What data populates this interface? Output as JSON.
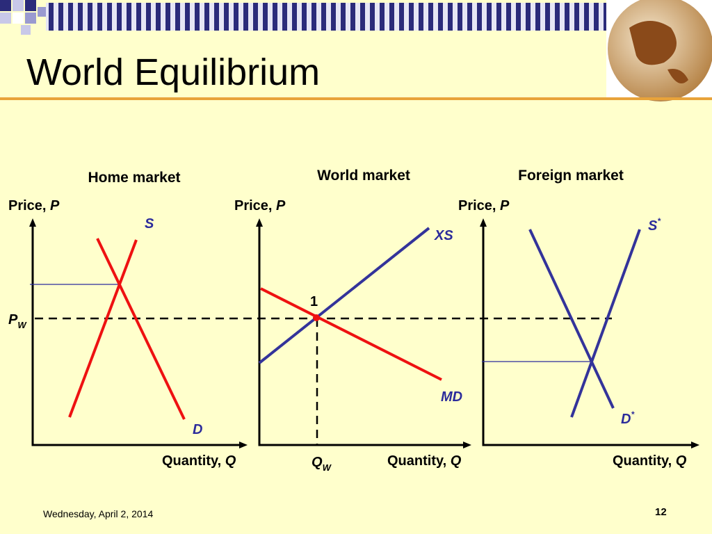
{
  "title": "World Equilibrium",
  "panels": [
    {
      "header": "Home market",
      "y_axis": {
        "text": "Price,",
        "var": "P"
      },
      "x_axis": {
        "text": "Quantity,",
        "var": "Q"
      },
      "curves": {
        "supply": "S",
        "demand": "D"
      }
    },
    {
      "header": "World market",
      "y_axis": {
        "text": "Price,",
        "var": "P"
      },
      "x_axis": {
        "text": "Quantity,",
        "var": "Q"
      },
      "curves": {
        "supply": "XS",
        "demand": "MD"
      },
      "point": "1",
      "qty_label": {
        "base": "Q",
        "sub": "W"
      }
    },
    {
      "header": "Foreign market",
      "y_axis": {
        "text": "Price,",
        "var": "P"
      },
      "x_axis": {
        "text": "Quantity,",
        "var": "Q"
      },
      "curves": {
        "supply": "S",
        "supply_sup": "*",
        "demand": "D",
        "demand_sup": "*"
      }
    }
  ],
  "price_label": {
    "base": "P",
    "sub": "W"
  },
  "footer": {
    "date": "Wednesday, April 2, 2014",
    "page": "12"
  }
}
